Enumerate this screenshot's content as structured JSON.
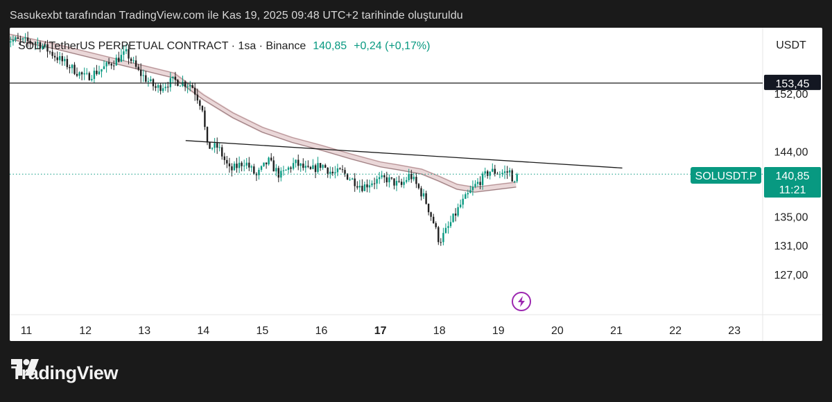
{
  "caption": "Sasukexbt tarafından TradingView.com ile Kas 19, 2025 09:48 UTC+2 tarihinde oluşturuldu",
  "brand": {
    "name": "TradingView",
    "logo_icon": "tradingview-logo-icon"
  },
  "legend": {
    "symbol": "SOL / TetherUS PERPETUAL CONTRACT · 1sa · Binance",
    "price": "140,85",
    "change": "+0,24 (+0,17%)",
    "change_color": "#089981"
  },
  "price_axis": {
    "currency": "USDT",
    "labels": [
      "152,00",
      "144,00",
      "135,00",
      "131,00",
      "127,00"
    ],
    "horizontal_level": "153,45",
    "last_symbol": "SOLUSDT.P",
    "last_price": "140,85",
    "countdown": "11:21"
  },
  "time_axis": {
    "labels": [
      "11",
      "12",
      "13",
      "14",
      "15",
      "16",
      "17",
      "18",
      "19",
      "20",
      "21",
      "22",
      "23"
    ],
    "bold_label": "17"
  },
  "colors": {
    "up": "#089981",
    "down": "#1f1f1f",
    "ma_band": "#c9a7aa",
    "event_icon": "#9c27b0"
  },
  "event_icon": "lightning-icon",
  "chart_data": {
    "type": "candlestick",
    "interval": "1h",
    "x_unit": "day of month (November 2025)",
    "ylim": [
      124,
      159
    ],
    "xlim": [
      10.6,
      23.5
    ],
    "horizontal_line": 153.45,
    "trend_line": {
      "from": [
        13.7,
        145.5
      ],
      "to": [
        21.1,
        141.7
      ]
    },
    "close_path": [
      [
        10.65,
        159.5
      ],
      [
        11.2,
        159
      ],
      [
        11.6,
        156.5
      ],
      [
        12.0,
        154.2
      ],
      [
        12.3,
        155.5
      ],
      [
        12.7,
        157.6
      ],
      [
        12.9,
        155
      ],
      [
        13.2,
        152.7
      ],
      [
        13.5,
        153.8
      ],
      [
        13.8,
        153.2
      ],
      [
        14.0,
        149.8
      ],
      [
        14.05,
        144.6
      ],
      [
        14.25,
        144.6
      ],
      [
        14.45,
        141.3
      ],
      [
        14.7,
        142.6
      ],
      [
        14.9,
        140.6
      ],
      [
        15.1,
        142.7
      ],
      [
        15.3,
        140.6
      ],
      [
        15.55,
        142.4
      ],
      [
        15.8,
        141.2
      ],
      [
        16.0,
        142.2
      ],
      [
        16.2,
        140.9
      ],
      [
        16.35,
        141.2
      ],
      [
        16.5,
        140.2
      ],
      [
        16.7,
        139.1
      ],
      [
        16.85,
        139.8
      ],
      [
        17.1,
        140.2
      ],
      [
        17.35,
        139.2
      ],
      [
        17.5,
        140.8
      ],
      [
        17.75,
        137.5
      ],
      [
        17.9,
        134.2
      ],
      [
        18.0,
        131.5
      ],
      [
        18.15,
        133.5
      ],
      [
        18.35,
        136.5
      ],
      [
        18.6,
        139.2
      ],
      [
        18.85,
        141.3
      ],
      [
        19.05,
        141.0
      ],
      [
        19.2,
        141.2
      ],
      [
        19.28,
        139.3
      ],
      [
        19.35,
        140.85
      ]
    ],
    "moving_average_band": [
      [
        10.65,
        160
      ],
      [
        11.5,
        158.5
      ],
      [
        12.5,
        156.5
      ],
      [
        13.0,
        155.5
      ],
      [
        13.5,
        154.5
      ],
      [
        14.0,
        151.5
      ],
      [
        14.5,
        149
      ],
      [
        15.0,
        147
      ],
      [
        15.5,
        145.6
      ],
      [
        16.0,
        144.5
      ],
      [
        16.5,
        143.3
      ],
      [
        17.0,
        142.2
      ],
      [
        17.3,
        141.8
      ],
      [
        17.7,
        141.2
      ],
      [
        18.0,
        140.2
      ],
      [
        18.3,
        139.1
      ],
      [
        18.6,
        138.7
      ],
      [
        19.0,
        139.1
      ],
      [
        19.3,
        139.4
      ]
    ],
    "last_price": 140.85,
    "price_change": 0.24,
    "price_change_pct": 0.17
  }
}
